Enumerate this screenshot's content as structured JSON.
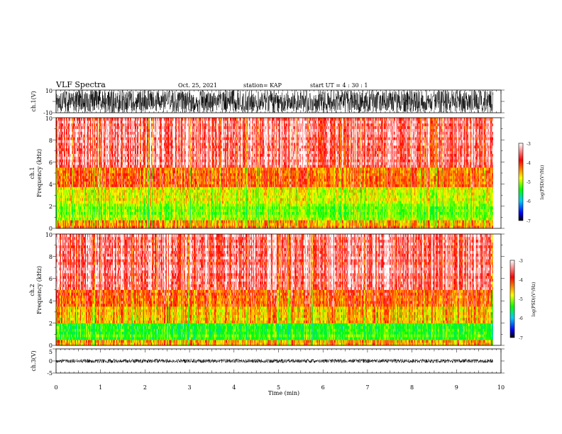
{
  "header": {
    "title": "VLF Spectra",
    "date": "Oct. 25, 2021",
    "station": "station= KAP",
    "start": "start  UT =   4 : 30 : 1"
  },
  "panels": {
    "ch1_wave": {
      "ylabel": "ch.1(V)",
      "yticks": [
        "10",
        "-10"
      ]
    },
    "ch1_spec": {
      "ylabel_top": "ch.1",
      "ylabel": "Frequency  (kHz)",
      "yticks": [
        "0",
        "2",
        "4",
        "6",
        "8",
        "10"
      ]
    },
    "ch2_spec": {
      "ylabel_top": "ch.2",
      "ylabel": "Frequency  (kHz)",
      "yticks": [
        "0",
        "2",
        "4",
        "6",
        "8",
        "10"
      ]
    },
    "ch3_wave": {
      "ylabel": "ch.3(V)",
      "yticks": [
        "5",
        "0",
        "-5"
      ]
    }
  },
  "xaxis": {
    "label": "Time  (min)",
    "ticks": [
      "0",
      "1",
      "2",
      "3",
      "4",
      "5",
      "6",
      "7",
      "8",
      "9",
      "10"
    ]
  },
  "colorbar": {
    "label": "log(PSD)(V²/Hz)",
    "ticks": [
      "-3",
      "-4",
      "-5",
      "-6",
      "-7"
    ],
    "colors": [
      "#ffffff",
      "#ff0000",
      "#ffff00",
      "#00ff00",
      "#00c8ff",
      "#0000ff",
      "#000000"
    ]
  },
  "chart_data": [
    {
      "type": "line",
      "name": "ch.1 waveform",
      "ylabel": "ch.1(V)",
      "xlim": [
        0,
        10
      ],
      "ylim": [
        -10,
        10
      ],
      "x_extent_min": 9.82,
      "amplitude_range": [
        -10,
        10
      ]
    },
    {
      "type": "heatmap",
      "name": "ch.1 spectrogram",
      "xlabel": "Time  (min)",
      "ylabel": "Frequency  (kHz)",
      "xlim": [
        0,
        10
      ],
      "ylim": [
        0,
        10
      ],
      "x_extent_min": 9.82,
      "colorscale_range": [
        -7,
        -3
      ],
      "bands_khz": [
        {
          "freq": [
            0,
            0.8
          ],
          "log_psd": -4.0
        },
        {
          "freq": [
            0.8,
            2.2
          ],
          "log_psd": -4.7
        },
        {
          "freq": [
            2.2,
            3.8
          ],
          "log_psd": -4.4
        },
        {
          "freq": [
            3.8,
            5.4
          ],
          "log_psd": -3.8
        },
        {
          "freq": [
            5.4,
            10
          ],
          "log_psd": -3.3
        }
      ]
    },
    {
      "type": "heatmap",
      "name": "ch.2 spectrogram",
      "xlabel": "Time  (min)",
      "ylabel": "Frequency  (kHz)",
      "xlim": [
        0,
        10
      ],
      "ylim": [
        0,
        10
      ],
      "x_extent_min": 9.82,
      "colorscale_range": [
        -7,
        -3
      ],
      "bands_khz": [
        {
          "freq": [
            0,
            0.6
          ],
          "log_psd": -4.0
        },
        {
          "freq": [
            0.6,
            2.0
          ],
          "log_psd": -4.9
        },
        {
          "freq": [
            2.0,
            3.5
          ],
          "log_psd": -4.2
        },
        {
          "freq": [
            3.5,
            5.0
          ],
          "log_psd": -3.8
        },
        {
          "freq": [
            5.0,
            10
          ],
          "log_psd": -3.3
        }
      ]
    },
    {
      "type": "line",
      "name": "ch.3 waveform",
      "ylabel": "ch.3(V)",
      "xlim": [
        0,
        10
      ],
      "ylim": [
        -5,
        5
      ],
      "x_extent_min": 9.82,
      "amplitude_range": [
        -0.5,
        0.5
      ]
    }
  ]
}
